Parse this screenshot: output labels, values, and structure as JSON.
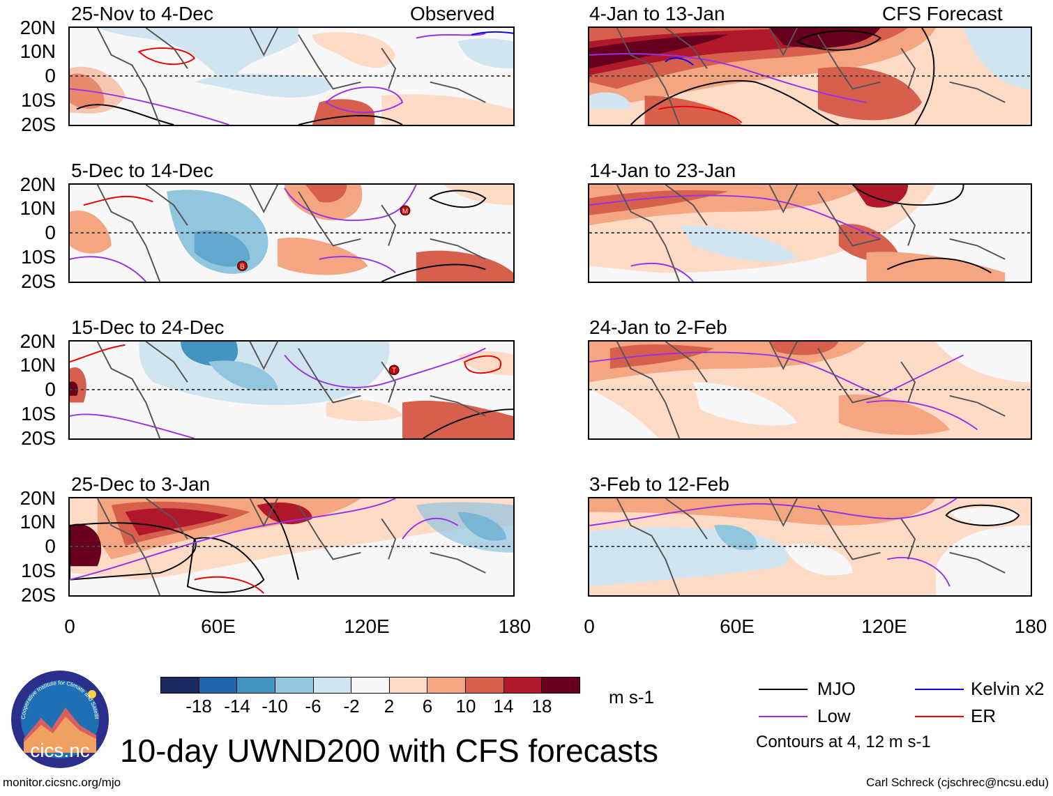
{
  "left_column": {
    "header_right": "Observed",
    "panels": [
      {
        "title": "25-Nov to 4-Dec"
      },
      {
        "title": "5-Dec to 14-Dec"
      },
      {
        "title": "15-Dec to 24-Dec"
      },
      {
        "title": "25-Dec to 3-Jan"
      }
    ]
  },
  "right_column": {
    "header_right": "CFS Forecast",
    "panels": [
      {
        "title": "4-Jan to 13-Jan"
      },
      {
        "title": "14-Jan to 23-Jan"
      },
      {
        "title": "24-Jan to 2-Feb"
      },
      {
        "title": "3-Feb to 12-Feb"
      }
    ]
  },
  "lat_labels": [
    "20N",
    "10N",
    "0",
    "10S",
    "20S"
  ],
  "lon_labels": [
    "0",
    "60E",
    "120E",
    "180"
  ],
  "storm_markers": [
    "B",
    "M",
    "T"
  ],
  "colorbar": {
    "ticks": [
      "-18",
      "-14",
      "-10",
      "-6",
      "-2",
      "2",
      "6",
      "10",
      "14",
      "18"
    ],
    "colors": [
      "#1b2a5e",
      "#2166ac",
      "#4393c3",
      "#92c5de",
      "#d1e5f0",
      "#f7f7f7",
      "#fddbc7",
      "#f4a582",
      "#d6604d",
      "#b2182b",
      "#67001f"
    ],
    "units": "m s-1"
  },
  "legend": {
    "items": [
      {
        "label": "MJO",
        "color": "#000000"
      },
      {
        "label": "Kelvin x2",
        "color": "#0000ee"
      },
      {
        "label": "Low",
        "color": "#9932e6"
      },
      {
        "label": "ER",
        "color": "#ee0000"
      }
    ],
    "note": "Contours at 4, 12 m s-1"
  },
  "title": "10-day UWND200 with CFS forecasts",
  "logo_text": "cics.nc",
  "logo_ring_text": "Cooperative Institute for Climate and Satellites",
  "footer_left": "monitor.cicsnc.org/mjo",
  "footer_right": "Carl Schreck (cjschrec@ncsu.edu)"
}
